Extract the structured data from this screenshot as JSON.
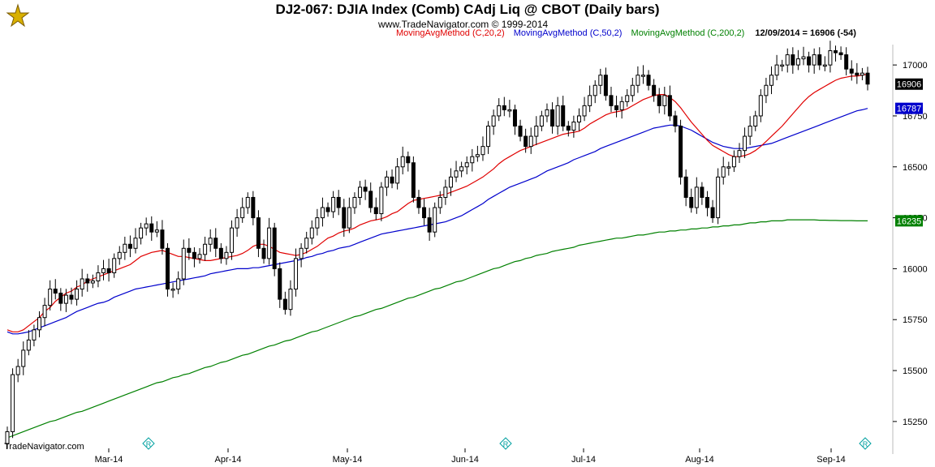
{
  "header": {
    "title": "DJ2-067:  DJIA Index (Comb) CAdj Liq @ CBOT  (Daily bars)",
    "subtitle": "www.TradeNavigator.com © 1999-2014",
    "legend": [
      {
        "label": "MovingAvgMethod (C,20,2)",
        "color": "#e00000"
      },
      {
        "label": "MovingAvgMethod (C,50,2)",
        "color": "#0000cc"
      },
      {
        "label": "MovingAvgMethod (C,200,2)",
        "color": "#008000"
      }
    ],
    "last_info": "12/09/2014 = 16906 (-54)"
  },
  "footer": {
    "brand": "TradeNavigator.com"
  },
  "chart_data": {
    "type": "candlestick",
    "ylim": [
      15150,
      17100
    ],
    "y_ticks": [
      "17000",
      "16750",
      "16500",
      "16250",
      "16000",
      "15750",
      "15500",
      "15250"
    ],
    "x_ticks": [
      "Mar-14",
      "Apr-14",
      "May-14",
      "Jun-14",
      "Jul-14",
      "Aug-14",
      "Sep-14"
    ],
    "price_tags": [
      {
        "value": 16906,
        "label": "16906",
        "bg": "#000000"
      },
      {
        "value": 16787,
        "label": "16787",
        "bg": "#0000cc"
      },
      {
        "value": 16235,
        "label": "16235",
        "bg": "#008000"
      }
    ],
    "marker_symbol": "R",
    "marker_color": "#00a0a0",
    "closes": [
      15200,
      15480,
      15520,
      15600,
      15650,
      15700,
      15760,
      15820,
      15900,
      15880,
      15830,
      15870,
      15850,
      15900,
      15950,
      15930,
      15940,
      15980,
      16000,
      15980,
      16050,
      16080,
      16120,
      16100,
      16150,
      16200,
      16220,
      16180,
      16190,
      16100,
      15900,
      15900,
      15950,
      16100,
      16080,
      16050,
      16070,
      16120,
      16150,
      16100,
      16050,
      16080,
      16200,
      16250,
      16300,
      16350,
      16250,
      16100,
      16050,
      16200,
      16000,
      15850,
      15800,
      15900,
      16050,
      16100,
      16150,
      16200,
      16250,
      16300,
      16280,
      16350,
      16300,
      16200,
      16300,
      16350,
      16400,
      16380,
      16300,
      16270,
      16400,
      16450,
      16420,
      16500,
      16550,
      16520,
      16350,
      16300,
      16250,
      16180,
      16300,
      16350,
      16400,
      16450,
      16480,
      16500,
      16520,
      16550,
      16560,
      16600,
      16700,
      16750,
      16800,
      16780,
      16780,
      16700,
      16650,
      16600,
      16650,
      16700,
      16750,
      16780,
      16700,
      16800,
      16700,
      16680,
      16720,
      16750,
      16800,
      16850,
      16900,
      16950,
      16850,
      16800,
      16780,
      16820,
      16850,
      16900,
      16950,
      16950,
      16900,
      16850,
      16800,
      16850,
      16750,
      16700,
      16450,
      16350,
      16300,
      16400,
      16350,
      16300,
      16250,
      16450,
      16500,
      16500,
      16550,
      16580,
      16650,
      16700,
      16750,
      16850,
      16900,
      16950,
      17000,
      17000,
      17050,
      17000,
      17030,
      17040,
      17000,
      17050,
      17000,
      17000,
      17070,
      17060,
      17050,
      16980,
      16960,
      16950,
      16960,
      16906
    ],
    "sma20": [
      15700,
      15690,
      15690,
      15700,
      15720,
      15740,
      15760,
      15790,
      15810,
      15840,
      15860,
      15880,
      15890,
      15910,
      15920,
      15940,
      15950,
      15960,
      15970,
      15980,
      15990,
      16000,
      16010,
      16020,
      16040,
      16060,
      16070,
      16080,
      16085,
      16090,
      16080,
      16070,
      16060,
      16060,
      16055,
      16050,
      16045,
      16040,
      16040,
      16045,
      16050,
      16055,
      16060,
      16065,
      16075,
      16090,
      16110,
      16120,
      16120,
      16110,
      16095,
      16080,
      16075,
      16070,
      16065,
      16070,
      16080,
      16095,
      16110,
      16130,
      16150,
      16160,
      16175,
      16185,
      16190,
      16200,
      16215,
      16225,
      16235,
      16240,
      16245,
      16255,
      16270,
      16280,
      16300,
      16320,
      16335,
      16340,
      16345,
      16350,
      16355,
      16360,
      16365,
      16375,
      16385,
      16395,
      16405,
      16420,
      16435,
      16450,
      16470,
      16490,
      16515,
      16535,
      16550,
      16565,
      16580,
      16590,
      16600,
      16610,
      16620,
      16630,
      16640,
      16650,
      16660,
      16665,
      16670,
      16675,
      16690,
      16710,
      16725,
      16740,
      16755,
      16765,
      16770,
      16775,
      16785,
      16800,
      16815,
      16830,
      16840,
      16850,
      16855,
      16855,
      16840,
      16820,
      16790,
      16755,
      16720,
      16690,
      16660,
      16630,
      16605,
      16590,
      16575,
      16560,
      16550,
      16550,
      16555,
      16565,
      16580,
      16600,
      16625,
      16650,
      16675,
      16700,
      16730,
      16760,
      16790,
      16820,
      16845,
      16865,
      16880,
      16895,
      16910,
      16925,
      16935,
      16940,
      16945,
      16945,
      16950,
      16955
    ],
    "sma50": [
      15690,
      15680,
      15680,
      15685,
      15690,
      15700,
      15710,
      15720,
      15730,
      15740,
      15750,
      15760,
      15775,
      15790,
      15800,
      15810,
      15820,
      15830,
      15835,
      15845,
      15860,
      15870,
      15880,
      15890,
      15900,
      15905,
      15910,
      15915,
      15920,
      15925,
      15930,
      15935,
      15940,
      15945,
      15950,
      15955,
      15960,
      15965,
      15975,
      15980,
      15985,
      15990,
      15995,
      16000,
      16000,
      16000,
      16005,
      16005,
      16010,
      16015,
      16020,
      16025,
      16030,
      16035,
      16040,
      16045,
      16055,
      16060,
      16070,
      16075,
      16085,
      16090,
      16100,
      16105,
      16110,
      16120,
      16130,
      16140,
      16150,
      16160,
      16170,
      16175,
      16180,
      16185,
      16190,
      16195,
      16200,
      16205,
      16210,
      16215,
      16220,
      16225,
      16230,
      16240,
      16250,
      16260,
      16275,
      16290,
      16305,
      16320,
      16340,
      16355,
      16370,
      16385,
      16400,
      16410,
      16420,
      16430,
      16440,
      16450,
      16465,
      16480,
      16490,
      16500,
      16510,
      16520,
      16535,
      16545,
      16555,
      16565,
      16575,
      16590,
      16600,
      16610,
      16620,
      16630,
      16640,
      16650,
      16660,
      16670,
      16680,
      16690,
      16695,
      16700,
      16705,
      16705,
      16700,
      16690,
      16680,
      16665,
      16650,
      16635,
      16620,
      16610,
      16600,
      16595,
      16590,
      16590,
      16590,
      16595,
      16600,
      16605,
      16610,
      16615,
      16625,
      16635,
      16645,
      16655,
      16665,
      16675,
      16685,
      16695,
      16705,
      16715,
      16725,
      16735,
      16745,
      16755,
      16765,
      16775,
      16780,
      16787
    ],
    "sma200": [
      15170,
      15180,
      15190,
      15200,
      15210,
      15220,
      15230,
      15240,
      15250,
      15255,
      15265,
      15275,
      15285,
      15295,
      15300,
      15310,
      15320,
      15330,
      15340,
      15350,
      15360,
      15370,
      15380,
      15390,
      15400,
      15410,
      15420,
      15430,
      15440,
      15445,
      15455,
      15465,
      15470,
      15480,
      15485,
      15495,
      15505,
      15515,
      15520,
      15530,
      15540,
      15545,
      15555,
      15565,
      15575,
      15580,
      15590,
      15600,
      15610,
      15620,
      15625,
      15635,
      15645,
      15650,
      15660,
      15670,
      15680,
      15690,
      15695,
      15705,
      15715,
      15725,
      15735,
      15745,
      15755,
      15765,
      15770,
      15780,
      15790,
      15800,
      15805,
      15815,
      15825,
      15835,
      15845,
      15855,
      15860,
      15870,
      15880,
      15890,
      15900,
      15905,
      15915,
      15925,
      15935,
      15940,
      15950,
      15960,
      15970,
      15980,
      15990,
      16000,
      16005,
      16015,
      16025,
      16035,
      16040,
      16050,
      16055,
      16065,
      16070,
      16075,
      16085,
      16090,
      16095,
      16100,
      16105,
      16115,
      16120,
      16125,
      16130,
      16135,
      16140,
      16145,
      16150,
      16150,
      16155,
      16160,
      16165,
      16165,
      16170,
      16175,
      16180,
      16180,
      16185,
      16185,
      16190,
      16190,
      16195,
      16195,
      16200,
      16200,
      16205,
      16205,
      16210,
      16210,
      16215,
      16215,
      16220,
      16225,
      16225,
      16230,
      16230,
      16235,
      16235,
      16235,
      16240,
      16240,
      16240,
      16240,
      16240,
      16240,
      16238,
      16238,
      16237,
      16237,
      16236,
      16236,
      16236,
      16235,
      16235,
      16235
    ]
  }
}
